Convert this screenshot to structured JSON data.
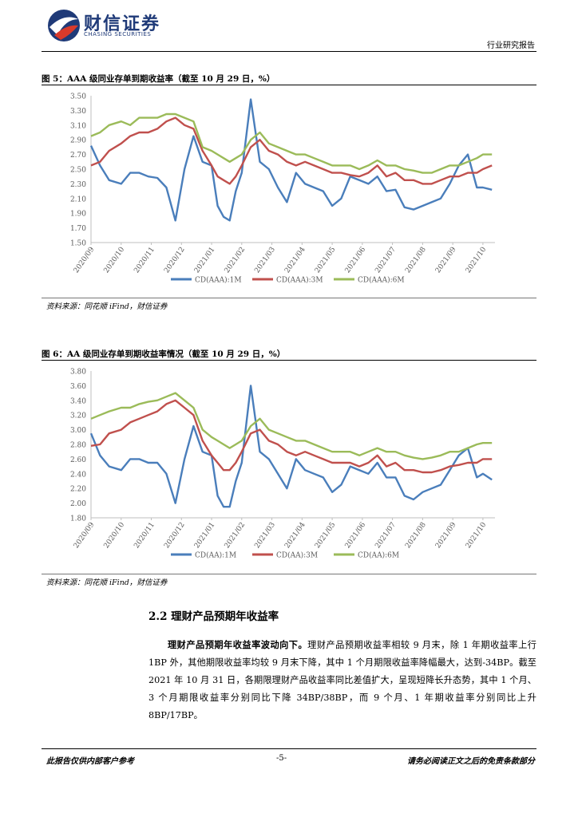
{
  "header": {
    "logo_name": "财信证券",
    "logo_sub": "CHASING SECURITIES",
    "report_type": "行业研究报告"
  },
  "figures": [
    {
      "title": "图 5：AAA 级同业存单到期收益率（截至 10 月 29 日，%）",
      "source": "资料来源：同花顺 iFind，财信证券"
    },
    {
      "title": "图 6：AA 级同业存单到期收益率情况（截至 10 月 29 日，%）",
      "source": "资料来源：同花顺 iFind，财信证券"
    }
  ],
  "section": {
    "title": "2.2 理财产品预期年收益率",
    "lead": "理财产品预期年收益率波动向下。",
    "body": "理财产品预期收益率相较 9 月末，除 1 年期收益率上行 1BP 外，其他期限收益率均较 9 月末下降，其中 1 个月期限收益率降幅最大，达到-34BP。截至 2021 年 10 月 31 日，各期限理财产品收益率同比差值扩大，呈现短降长升态势，其中 1 个月、3 个月期限收益率分别同比下降 34BP/38BP，而 9 个月、1 年期收益率分别同比上升 8BP/17BP。"
  },
  "footer": {
    "left": "此报告仅供内部客户参考",
    "center": "-5-",
    "right": "请务必阅读正文之后的免责条款部分"
  },
  "chart_data": [
    {
      "type": "line",
      "title": "图 5：AAA 级同业存单到期收益率（截至 10 月 29 日，%）",
      "x_ticks": [
        "2020/09",
        "2020/10",
        "2020/11",
        "2020/12",
        "2021/01",
        "2021/02",
        "2021/03",
        "2021/04",
        "2021/05",
        "2021/06",
        "2021/07",
        "2021/08",
        "2021/09",
        "2021/10"
      ],
      "y_ticks": [
        "1.50",
        "1.70",
        "1.90",
        "2.10",
        "2.30",
        "2.50",
        "2.70",
        "2.90",
        "3.10",
        "3.30",
        "3.50"
      ],
      "ylim": [
        1.5,
        3.5
      ],
      "x": [
        0,
        0.3,
        0.6,
        1,
        1.3,
        1.6,
        1.9,
        2.2,
        2.5,
        2.8,
        3.1,
        3.4,
        3.7,
        4,
        4.2,
        4.4,
        4.6,
        4.8,
        5,
        5.3,
        5.6,
        5.9,
        6.2,
        6.5,
        6.8,
        7.1,
        7.4,
        7.7,
        8,
        8.3,
        8.6,
        8.9,
        9.2,
        9.5,
        9.8,
        10.1,
        10.4,
        10.7,
        11,
        11.3,
        11.6,
        11.9,
        12.2,
        12.5,
        12.8,
        13,
        13.3
      ],
      "series": [
        {
          "name": "CD(AAA):1M",
          "color": "#4a7ebb",
          "values": [
            2.82,
            2.55,
            2.35,
            2.3,
            2.45,
            2.45,
            2.4,
            2.38,
            2.25,
            1.8,
            2.5,
            2.95,
            2.6,
            2.55,
            2.0,
            1.85,
            1.8,
            2.2,
            2.45,
            3.45,
            2.6,
            2.5,
            2.25,
            2.05,
            2.45,
            2.3,
            2.25,
            2.2,
            2.0,
            2.1,
            2.4,
            2.35,
            2.3,
            2.4,
            2.2,
            2.22,
            1.98,
            1.95,
            2.0,
            2.05,
            2.1,
            2.3,
            2.55,
            2.7,
            2.25,
            2.25,
            2.22
          ]
        },
        {
          "name": "CD(AAA):3M",
          "color": "#c0504d",
          "values": [
            2.55,
            2.6,
            2.75,
            2.85,
            2.95,
            3.0,
            3.0,
            3.05,
            3.15,
            3.2,
            3.1,
            3.05,
            2.75,
            2.55,
            2.4,
            2.35,
            2.3,
            2.4,
            2.55,
            2.8,
            2.9,
            2.75,
            2.7,
            2.6,
            2.55,
            2.6,
            2.55,
            2.5,
            2.45,
            2.45,
            2.42,
            2.4,
            2.45,
            2.55,
            2.4,
            2.45,
            2.35,
            2.35,
            2.3,
            2.3,
            2.35,
            2.4,
            2.4,
            2.45,
            2.45,
            2.5,
            2.55
          ]
        },
        {
          "name": "CD(AAA):6M",
          "color": "#9bbb59",
          "values": [
            2.95,
            3.0,
            3.1,
            3.15,
            3.1,
            3.2,
            3.2,
            3.2,
            3.25,
            3.25,
            3.2,
            3.15,
            2.8,
            2.75,
            2.7,
            2.65,
            2.6,
            2.65,
            2.7,
            2.9,
            3.0,
            2.85,
            2.8,
            2.75,
            2.7,
            2.7,
            2.65,
            2.6,
            2.55,
            2.55,
            2.55,
            2.5,
            2.55,
            2.62,
            2.55,
            2.55,
            2.5,
            2.48,
            2.45,
            2.45,
            2.5,
            2.55,
            2.55,
            2.6,
            2.65,
            2.7,
            2.7
          ]
        }
      ],
      "legend_position": "bottom",
      "grid": false
    },
    {
      "type": "line",
      "title": "图 6：AA 级同业存单到期收益率情况（截至 10 月 29 日，%）",
      "x_ticks": [
        "2020/09",
        "2020/10",
        "2020/11",
        "2020/12",
        "2021/01",
        "2021/02",
        "2021/03",
        "2021/04",
        "2021/05",
        "2021/06",
        "2021/07",
        "2021/08",
        "2021/09",
        "2021/10"
      ],
      "y_ticks": [
        "1.80",
        "2.00",
        "2.20",
        "2.40",
        "2.60",
        "2.80",
        "3.00",
        "3.20",
        "3.40",
        "3.60",
        "3.80"
      ],
      "ylim": [
        1.8,
        3.8
      ],
      "x": [
        0,
        0.3,
        0.6,
        1,
        1.3,
        1.6,
        1.9,
        2.2,
        2.5,
        2.8,
        3.1,
        3.4,
        3.7,
        4,
        4.2,
        4.4,
        4.6,
        4.8,
        5,
        5.3,
        5.6,
        5.9,
        6.2,
        6.5,
        6.8,
        7.1,
        7.4,
        7.7,
        8,
        8.3,
        8.6,
        8.9,
        9.2,
        9.5,
        9.8,
        10.1,
        10.4,
        10.7,
        11,
        11.3,
        11.6,
        11.9,
        12.2,
        12.5,
        12.8,
        13,
        13.3
      ],
      "series": [
        {
          "name": "CD(AA):1M",
          "color": "#4a7ebb",
          "values": [
            2.95,
            2.65,
            2.5,
            2.45,
            2.6,
            2.6,
            2.55,
            2.55,
            2.4,
            2.0,
            2.6,
            3.05,
            2.7,
            2.65,
            2.1,
            1.95,
            1.95,
            2.3,
            2.55,
            3.6,
            2.7,
            2.6,
            2.4,
            2.2,
            2.6,
            2.45,
            2.4,
            2.35,
            2.15,
            2.25,
            2.5,
            2.45,
            2.4,
            2.55,
            2.35,
            2.35,
            2.1,
            2.05,
            2.15,
            2.2,
            2.25,
            2.45,
            2.65,
            2.75,
            2.35,
            2.4,
            2.32
          ]
        },
        {
          "name": "CD(AA):3M",
          "color": "#c0504d",
          "values": [
            2.78,
            2.8,
            2.95,
            3.0,
            3.1,
            3.15,
            3.2,
            3.25,
            3.35,
            3.4,
            3.3,
            3.2,
            2.85,
            2.65,
            2.55,
            2.45,
            2.45,
            2.55,
            2.7,
            2.95,
            3.0,
            2.85,
            2.8,
            2.7,
            2.65,
            2.7,
            2.65,
            2.6,
            2.55,
            2.55,
            2.55,
            2.5,
            2.55,
            2.65,
            2.5,
            2.55,
            2.45,
            2.45,
            2.42,
            2.42,
            2.45,
            2.5,
            2.52,
            2.55,
            2.55,
            2.6,
            2.6
          ]
        },
        {
          "name": "CD(AA):6M",
          "color": "#9bbb59",
          "values": [
            3.15,
            3.2,
            3.25,
            3.3,
            3.3,
            3.35,
            3.38,
            3.4,
            3.45,
            3.5,
            3.4,
            3.3,
            3.0,
            2.9,
            2.85,
            2.8,
            2.75,
            2.8,
            2.85,
            3.05,
            3.15,
            3.0,
            2.95,
            2.9,
            2.85,
            2.85,
            2.8,
            2.75,
            2.7,
            2.7,
            2.7,
            2.65,
            2.7,
            2.75,
            2.7,
            2.7,
            2.65,
            2.62,
            2.6,
            2.62,
            2.65,
            2.7,
            2.7,
            2.75,
            2.8,
            2.82,
            2.82
          ]
        }
      ],
      "legend_position": "bottom",
      "grid": false
    }
  ]
}
